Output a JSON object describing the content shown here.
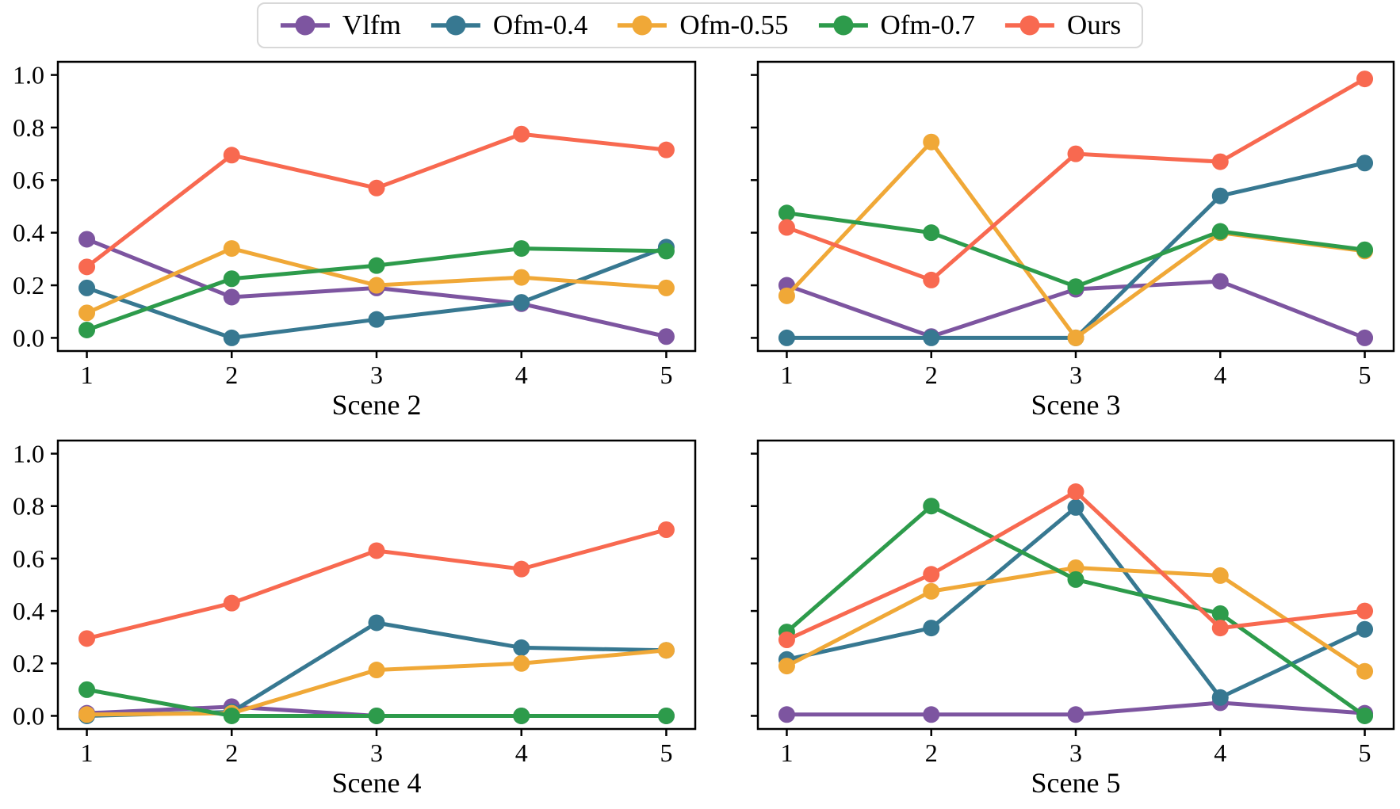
{
  "figure": {
    "background": "#ffffff",
    "text_color": "#000000",
    "spine_color": "#000000"
  },
  "legend": {
    "position": "top-center",
    "entries": [
      {
        "label": "Vlfm",
        "color": "#7D55A0"
      },
      {
        "label": "Ofm-0.4",
        "color": "#377891"
      },
      {
        "label": "Ofm-0.55",
        "color": "#F0A837"
      },
      {
        "label": "Ofm-0.7",
        "color": "#2D9B4B"
      },
      {
        "label": "Ours",
        "color": "#F86950"
      }
    ]
  },
  "chart_data": [
    {
      "type": "line",
      "title": "Scene 2",
      "x": [
        1,
        2,
        3,
        4,
        5
      ],
      "xlim": [
        0.8,
        5.2
      ],
      "ylim": [
        -0.05,
        1.05
      ],
      "xticks": [
        1,
        2,
        3,
        4,
        5
      ],
      "xtick_labels": [
        "1",
        "2",
        "3",
        "4",
        "5"
      ],
      "yticks": [
        0.0,
        0.2,
        0.4,
        0.6,
        0.8,
        1.0
      ],
      "ytick_labels": [
        "0.0",
        "0.2",
        "0.4",
        "0.6",
        "0.8",
        "1.0"
      ],
      "show_ytick_labels": true,
      "grid": false,
      "series": [
        {
          "name": "Vlfm",
          "values": [
            0.375,
            0.155,
            0.19,
            0.13,
            0.005
          ]
        },
        {
          "name": "Ofm-0.4",
          "values": [
            0.19,
            0.0,
            0.07,
            0.135,
            0.345
          ]
        },
        {
          "name": "Ofm-0.55",
          "values": [
            0.095,
            0.34,
            0.2,
            0.23,
            0.19
          ]
        },
        {
          "name": "Ofm-0.7",
          "values": [
            0.03,
            0.225,
            0.275,
            0.34,
            0.33
          ]
        },
        {
          "name": "Ours",
          "values": [
            0.27,
            0.695,
            0.57,
            0.775,
            0.715
          ]
        }
      ]
    },
    {
      "type": "line",
      "title": "Scene 3",
      "x": [
        1,
        2,
        3,
        4,
        5
      ],
      "xlim": [
        0.8,
        5.2
      ],
      "ylim": [
        -0.05,
        1.05
      ],
      "xticks": [
        1,
        2,
        3,
        4,
        5
      ],
      "xtick_labels": [
        "1",
        "2",
        "3",
        "4",
        "5"
      ],
      "yticks": [
        0.0,
        0.2,
        0.4,
        0.6,
        0.8,
        1.0
      ],
      "ytick_labels": [
        "0.0",
        "0.2",
        "0.4",
        "0.6",
        "0.8",
        "1.0"
      ],
      "show_ytick_labels": false,
      "grid": false,
      "series": [
        {
          "name": "Vlfm",
          "values": [
            0.2,
            0.005,
            0.185,
            0.215,
            0.0
          ]
        },
        {
          "name": "Ofm-0.4",
          "values": [
            0.0,
            0.0,
            0.0,
            0.54,
            0.665
          ]
        },
        {
          "name": "Ofm-0.55",
          "values": [
            0.16,
            0.745,
            0.0,
            0.4,
            0.33
          ]
        },
        {
          "name": "Ofm-0.7",
          "values": [
            0.475,
            0.4,
            0.195,
            0.405,
            0.335
          ]
        },
        {
          "name": "Ours",
          "values": [
            0.42,
            0.22,
            0.7,
            0.67,
            0.985
          ]
        }
      ]
    },
    {
      "type": "line",
      "title": "Scene 4",
      "x": [
        1,
        2,
        3,
        4,
        5
      ],
      "xlim": [
        0.8,
        5.2
      ],
      "ylim": [
        -0.05,
        1.05
      ],
      "xticks": [
        1,
        2,
        3,
        4,
        5
      ],
      "xtick_labels": [
        "1",
        "2",
        "3",
        "4",
        "5"
      ],
      "yticks": [
        0.0,
        0.2,
        0.4,
        0.6,
        0.8,
        1.0
      ],
      "ytick_labels": [
        "0.0",
        "0.2",
        "0.4",
        "0.6",
        "0.8",
        "1.0"
      ],
      "show_ytick_labels": true,
      "grid": false,
      "series": [
        {
          "name": "Vlfm",
          "values": [
            0.01,
            0.035,
            0.0,
            0.0,
            0.0
          ]
        },
        {
          "name": "Ofm-0.4",
          "values": [
            0.0,
            0.015,
            0.355,
            0.26,
            0.25
          ]
        },
        {
          "name": "Ofm-0.55",
          "values": [
            0.005,
            0.01,
            0.175,
            0.2,
            0.25
          ]
        },
        {
          "name": "Ofm-0.7",
          "values": [
            0.1,
            0.0,
            0.0,
            0.0,
            0.0
          ]
        },
        {
          "name": "Ours",
          "values": [
            0.295,
            0.43,
            0.63,
            0.56,
            0.71
          ]
        }
      ]
    },
    {
      "type": "line",
      "title": "Scene 5",
      "x": [
        1,
        2,
        3,
        4,
        5
      ],
      "xlim": [
        0.8,
        5.2
      ],
      "ylim": [
        -0.05,
        1.05
      ],
      "xticks": [
        1,
        2,
        3,
        4,
        5
      ],
      "xtick_labels": [
        "1",
        "2",
        "3",
        "4",
        "5"
      ],
      "yticks": [
        0.0,
        0.2,
        0.4,
        0.6,
        0.8,
        1.0
      ],
      "ytick_labels": [
        "0.0",
        "0.2",
        "0.4",
        "0.6",
        "0.8",
        "1.0"
      ],
      "show_ytick_labels": false,
      "grid": false,
      "series": [
        {
          "name": "Vlfm",
          "values": [
            0.005,
            0.005,
            0.005,
            0.05,
            0.01
          ]
        },
        {
          "name": "Ofm-0.4",
          "values": [
            0.215,
            0.335,
            0.795,
            0.07,
            0.33
          ]
        },
        {
          "name": "Ofm-0.55",
          "values": [
            0.19,
            0.475,
            0.565,
            0.535,
            0.17
          ]
        },
        {
          "name": "Ofm-0.7",
          "values": [
            0.32,
            0.8,
            0.52,
            0.39,
            0.0
          ]
        },
        {
          "name": "Ours",
          "values": [
            0.29,
            0.54,
            0.855,
            0.335,
            0.4
          ]
        }
      ]
    }
  ]
}
